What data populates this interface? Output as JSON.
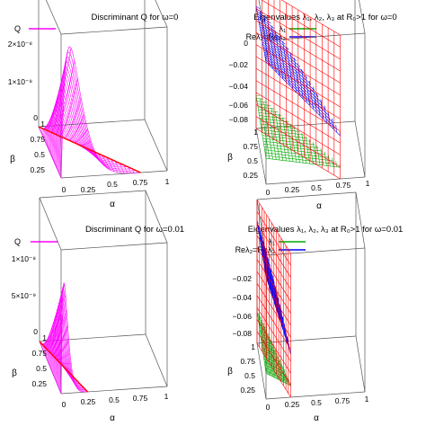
{
  "chart_data": [
    {
      "type": "surface",
      "title": "Discriminant Q for ω=0",
      "xlabel": "α",
      "ylabel": "β",
      "z_ticks": [
        "2×10⁻⁸",
        "1×10⁻⁸",
        "0"
      ],
      "x_ticks": [
        "0",
        "0.25",
        "0.5",
        "0.75",
        "1"
      ],
      "y_ticks": [
        "1",
        "0.75",
        "0.5",
        "0.25"
      ],
      "legend": [
        {
          "label": "Q",
          "color": "#ff00ff"
        }
      ],
      "series": [
        {
          "name": "Q",
          "color": "#ff00ff",
          "peak": 2e-08,
          "z_min": 0,
          "z_max": 2.2e-08
        }
      ],
      "domain_limit": 0.75
    },
    {
      "type": "surface",
      "title": "Eigenvalues λ₁, λ₂, λ₃ at R₀>1 for ω=0",
      "xlabel": "α",
      "ylabel": "β",
      "z_ticks": [
        "0",
        "−0.02",
        "−0.04",
        "−0.06",
        "−0.08"
      ],
      "x_ticks": [
        "0",
        "0.25",
        "0.5",
        "0.75",
        "1"
      ],
      "y_ticks": [
        "1",
        "0.75",
        "0.5",
        "0.25"
      ],
      "legend": [
        {
          "label": "λ₁",
          "color": "#00aa00"
        },
        {
          "label": "Reλ₂=Reλ₃",
          "color": "#0000ff"
        }
      ],
      "series": [
        {
          "name": "λ₁",
          "color": "#00aa00"
        },
        {
          "name": "Reλ₂=Reλ₃",
          "color": "#0000ff"
        },
        {
          "name": "plane",
          "color": "#ff0000"
        }
      ],
      "z_range": [
        -0.09,
        0.0
      ],
      "domain_limit": 0.75
    },
    {
      "type": "surface",
      "title": "Discriminant Q for ω=0.01",
      "xlabel": "α",
      "ylabel": "β",
      "z_ticks": [
        "1×10⁻⁸",
        "5×10⁻⁹",
        "0"
      ],
      "x_ticks": [
        "0",
        "0.25",
        "0.5",
        "0.75",
        "1"
      ],
      "y_ticks": [
        "1",
        "0.75",
        "0.5",
        "0.25"
      ],
      "legend": [
        {
          "label": "Q",
          "color": "#ff00ff"
        }
      ],
      "series": [
        {
          "name": "Q",
          "color": "#ff00ff",
          "peak": 1e-08,
          "z_min": 0,
          "z_max": 1.3e-08
        }
      ],
      "domain_limit": 0.25
    },
    {
      "type": "surface",
      "title": "Eigenvalues λ₁, λ₂, λ₃ at R₀>1 for ω=0.01",
      "xlabel": "α",
      "ylabel": "β",
      "z_ticks": [
        "−0.02",
        "−0.04",
        "−0.06",
        "−0.08"
      ],
      "x_ticks": [
        "0",
        "0.25",
        "0.5",
        "0.75",
        "1"
      ],
      "y_ticks": [
        "1",
        "0.75",
        "0.5",
        "0.25"
      ],
      "legend": [
        {
          "label": "λ₁",
          "color": "#00aa00"
        },
        {
          "label": "Reλ₂=Reλ₃",
          "color": "#0000ff"
        }
      ],
      "series": [
        {
          "name": "λ₁",
          "color": "#00aa00"
        },
        {
          "name": "Reλ₂=Reλ₃",
          "color": "#0000ff"
        },
        {
          "name": "plane",
          "color": "#ff0000"
        }
      ],
      "z_range": [
        -0.1,
        -0.01
      ],
      "domain_limit": 0.25
    }
  ]
}
